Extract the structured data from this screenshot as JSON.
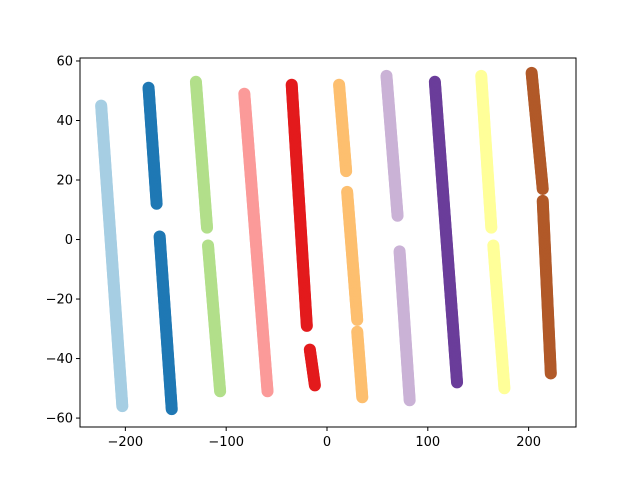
{
  "chart_data": {
    "type": "scatter",
    "title": "",
    "xlabel": "",
    "ylabel": "",
    "xlim": [
      -245,
      247
    ],
    "ylim": [
      -63,
      61
    ],
    "xticks": [
      -200,
      -100,
      0,
      100,
      200
    ],
    "yticks": [
      -60,
      -40,
      -20,
      0,
      20,
      40,
      60
    ],
    "xtick_labels": [
      "−200",
      "−100",
      "0",
      "100",
      "200"
    ],
    "ytick_labels": [
      "−60",
      "−40",
      "−20",
      "0",
      "20",
      "40",
      "60"
    ],
    "grid": false,
    "legend": "none",
    "series": [
      {
        "color": "#a6cee3",
        "segments": [
          {
            "x0": -224,
            "y0": 45,
            "x1": -203,
            "y1": -56
          }
        ]
      },
      {
        "color": "#1f78b4",
        "segments": [
          {
            "x0": -177,
            "y0": 51,
            "x1": -169,
            "y1": 12
          },
          {
            "x0": -166,
            "y0": 1,
            "x1": -154,
            "y1": -57
          }
        ]
      },
      {
        "color": "#b2df8a",
        "segments": [
          {
            "x0": -130,
            "y0": 53,
            "x1": -119,
            "y1": 4
          },
          {
            "x0": -118,
            "y0": -2,
            "x1": -106,
            "y1": -51
          }
        ]
      },
      {
        "color": "#fb9a99",
        "segments": [
          {
            "x0": -82,
            "y0": 49,
            "x1": -59,
            "y1": -51
          }
        ]
      },
      {
        "color": "#e31a1c",
        "segments": [
          {
            "x0": -35,
            "y0": 52,
            "x1": -20,
            "y1": -29
          },
          {
            "x0": -17,
            "y0": -37,
            "x1": -12,
            "y1": -49
          }
        ]
      },
      {
        "color": "#fdbf6f",
        "segments": [
          {
            "x0": 12,
            "y0": 52,
            "x1": 19,
            "y1": 23
          },
          {
            "x0": 20,
            "y0": 16,
            "x1": 30,
            "y1": -27
          },
          {
            "x0": 30,
            "y0": -31,
            "x1": 35,
            "y1": -53
          }
        ]
      },
      {
        "color": "#cab2d6",
        "segments": [
          {
            "x0": 59,
            "y0": 55,
            "x1": 70,
            "y1": 8
          },
          {
            "x0": 72,
            "y0": -4,
            "x1": 82,
            "y1": -54
          }
        ]
      },
      {
        "color": "#6a3d9a",
        "segments": [
          {
            "x0": 107,
            "y0": 53,
            "x1": 129,
            "y1": -48
          }
        ]
      },
      {
        "color": "#ffff99",
        "segments": [
          {
            "x0": 153,
            "y0": 55,
            "x1": 163,
            "y1": 4
          },
          {
            "x0": 165,
            "y0": -2,
            "x1": 176,
            "y1": -50
          }
        ]
      },
      {
        "color": "#b15928",
        "segments": [
          {
            "x0": 203,
            "y0": 56,
            "x1": 214,
            "y1": 17
          },
          {
            "x0": 214,
            "y0": 13,
            "x1": 222,
            "y1": -45
          }
        ]
      }
    ]
  }
}
